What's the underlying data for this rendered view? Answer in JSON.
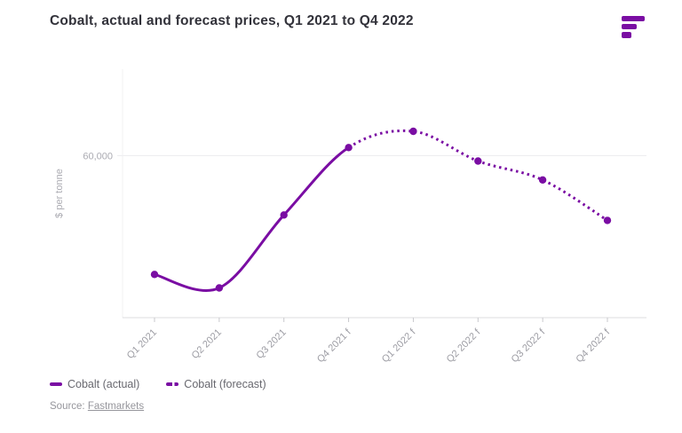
{
  "header": {
    "title": "Cobalt, actual and forecast prices, Q1 2021 to Q4 2022"
  },
  "logo": {
    "name": "fastmarkets-logo",
    "color": "#7a0da3"
  },
  "legend": {
    "actual": "Cobalt (actual)",
    "forecast": "Cobalt (forecast)"
  },
  "source": {
    "prefix": "Source:",
    "link_text": "Fastmarkets"
  },
  "colors": {
    "accent_purple": "#7a0da3",
    "title_text": "#32323a",
    "axis_text": "#ababb2",
    "x_label_text": "#9d9da4",
    "gridline": "#ececee",
    "axis_line": "#dcdcdf",
    "tick": "#c9c9cd",
    "legend_text": "#68686f",
    "source_text": "#96969c"
  },
  "chart_data": {
    "type": "line",
    "title": "Cobalt, actual and forecast prices, Q1 2021 to Q4 2022",
    "xlabel": "",
    "ylabel": "$ per tonne",
    "categories": [
      "Q1 2021",
      "Q2 2021",
      "Q3 2021",
      "Q4 2021 f",
      "Q1 2022 f",
      "Q2 2022 f",
      "Q3 2022 f",
      "Q4 2022 f"
    ],
    "series": [
      {
        "name": "Cobalt (actual)",
        "line_style": "solid",
        "values": [
          38000,
          35500,
          49000,
          61500,
          null,
          null,
          null,
          null
        ]
      },
      {
        "name": "Cobalt (forecast)",
        "line_style": "dotted",
        "values": [
          null,
          null,
          null,
          61500,
          64500,
          59000,
          55500,
          48000
        ]
      }
    ],
    "ylim": [
      30000,
      76000
    ],
    "yticks": [
      {
        "value": 60000,
        "label": "60,000"
      }
    ],
    "grid": "horizontal",
    "legend_position": "bottom-left"
  }
}
